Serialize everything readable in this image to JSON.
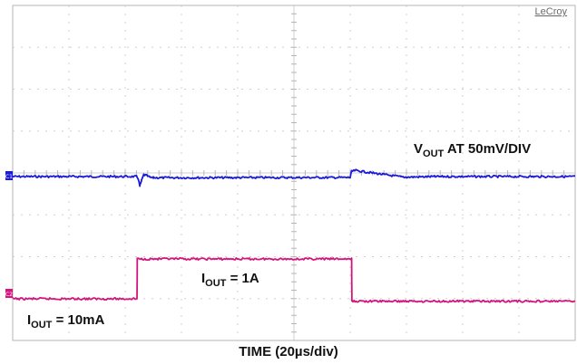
{
  "chart_data": {
    "type": "line",
    "brand": "LeCroy",
    "xlabel": "TIME (20µs/div)",
    "x_unit": "µs",
    "xlim": [
      0,
      200
    ],
    "grid": true,
    "series": [
      {
        "name": "VOUT",
        "label_main": "V",
        "label_sub": "OUT",
        "label_rest": " AT 50mV/DIV",
        "color": "#1a1adb",
        "x": [
          0,
          44.0,
          44.6,
          45.2,
          45.8,
          46.6,
          47.6,
          48.8,
          50.0,
          52.0,
          120.0,
          120.5,
          122.0,
          126.0,
          132.0,
          138.0,
          140.0,
          150.0,
          200.0
        ],
        "y": [
          0,
          0,
          -2.2,
          -11.5,
          -5.0,
          2.3,
          1.2,
          -1.0,
          -1.4,
          -1.4,
          -1.1,
          6.0,
          7.4,
          5.2,
          2.4,
          -0.3,
          -0.7,
          0.0,
          0.0
        ],
        "unit": "mV"
      },
      {
        "name": "IOUT",
        "color": "#d4157b",
        "x": [
          0,
          44.2,
          44.3,
          120.5,
          120.6,
          200.0
        ],
        "y": [
          0.01,
          0.01,
          1.0,
          1.0,
          -0.05,
          -0.05
        ],
        "unit": "A"
      }
    ],
    "annotations": [
      {
        "main": "I",
        "sub": "OUT",
        "rest": " = 1A"
      },
      {
        "main": "I",
        "sub": "OUT",
        "rest": " = 10mA"
      }
    ],
    "channel_markers": [
      "C1",
      "C2"
    ]
  }
}
